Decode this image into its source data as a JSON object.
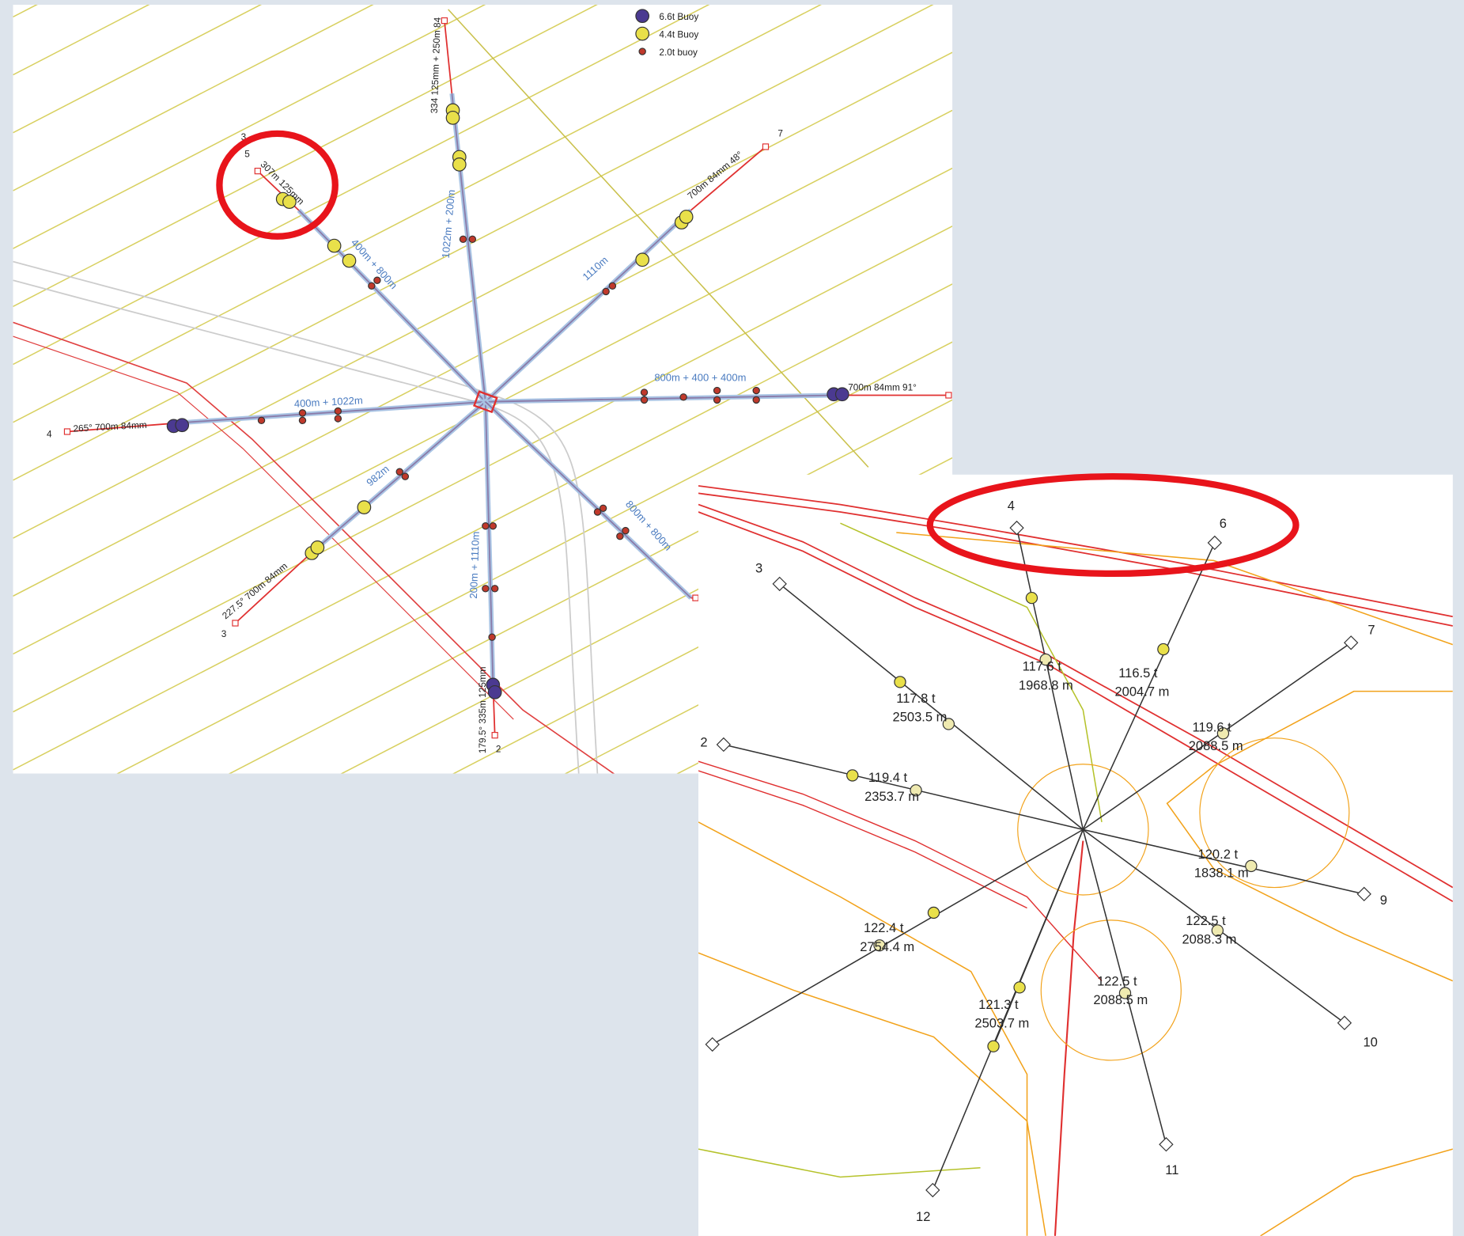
{
  "left_panel": {
    "legend": [
      {
        "label": "6.6t Buoy"
      },
      {
        "label": "4.4t Buoy"
      },
      {
        "label": "2.0t buoy"
      }
    ],
    "line_labels": [
      "307m 125mm",
      "400m + 800m",
      "334 125mm + 250m 84",
      "1022m + 200m",
      "700m 84mm 48°",
      "1110m",
      "800m + 400 + 400m",
      "700m 84mm 91°",
      "400m + 1022m",
      "265° 700m 84mm",
      "982m",
      "227.5° 700m 84mm",
      "200m + 1110m",
      "179.5° 335m 125mm",
      "800m + 800m"
    ],
    "anchor_labels": [
      "3",
      "5",
      "7",
      "4",
      "3",
      "2"
    ]
  },
  "right_panel": {
    "anchor_labels": [
      "4",
      "6",
      "3",
      "7",
      "2",
      "9",
      "10",
      "11",
      "12"
    ],
    "leg_labels": [
      {
        "tension": "117.6 t",
        "length": "1968.8 m"
      },
      {
        "tension": "116.5 t",
        "length": "2004.7 m"
      },
      {
        "tension": "117.8 t",
        "length": "2503.5 m"
      },
      {
        "tension": "119.6 t",
        "length": "2088.5 m"
      },
      {
        "tension": "119.4 t",
        "length": "2353.7 m"
      },
      {
        "tension": "120.2 t",
        "length": "1838.1 m"
      },
      {
        "tension": "122.5 t",
        "length": "2088.3 m"
      },
      {
        "tension": "122.4 t",
        "length": "2754.4 m"
      },
      {
        "tension": "122.5 t",
        "length": "2088.5 m"
      },
      {
        "tension": "121.3 t",
        "length": "2503.7 m"
      }
    ]
  }
}
